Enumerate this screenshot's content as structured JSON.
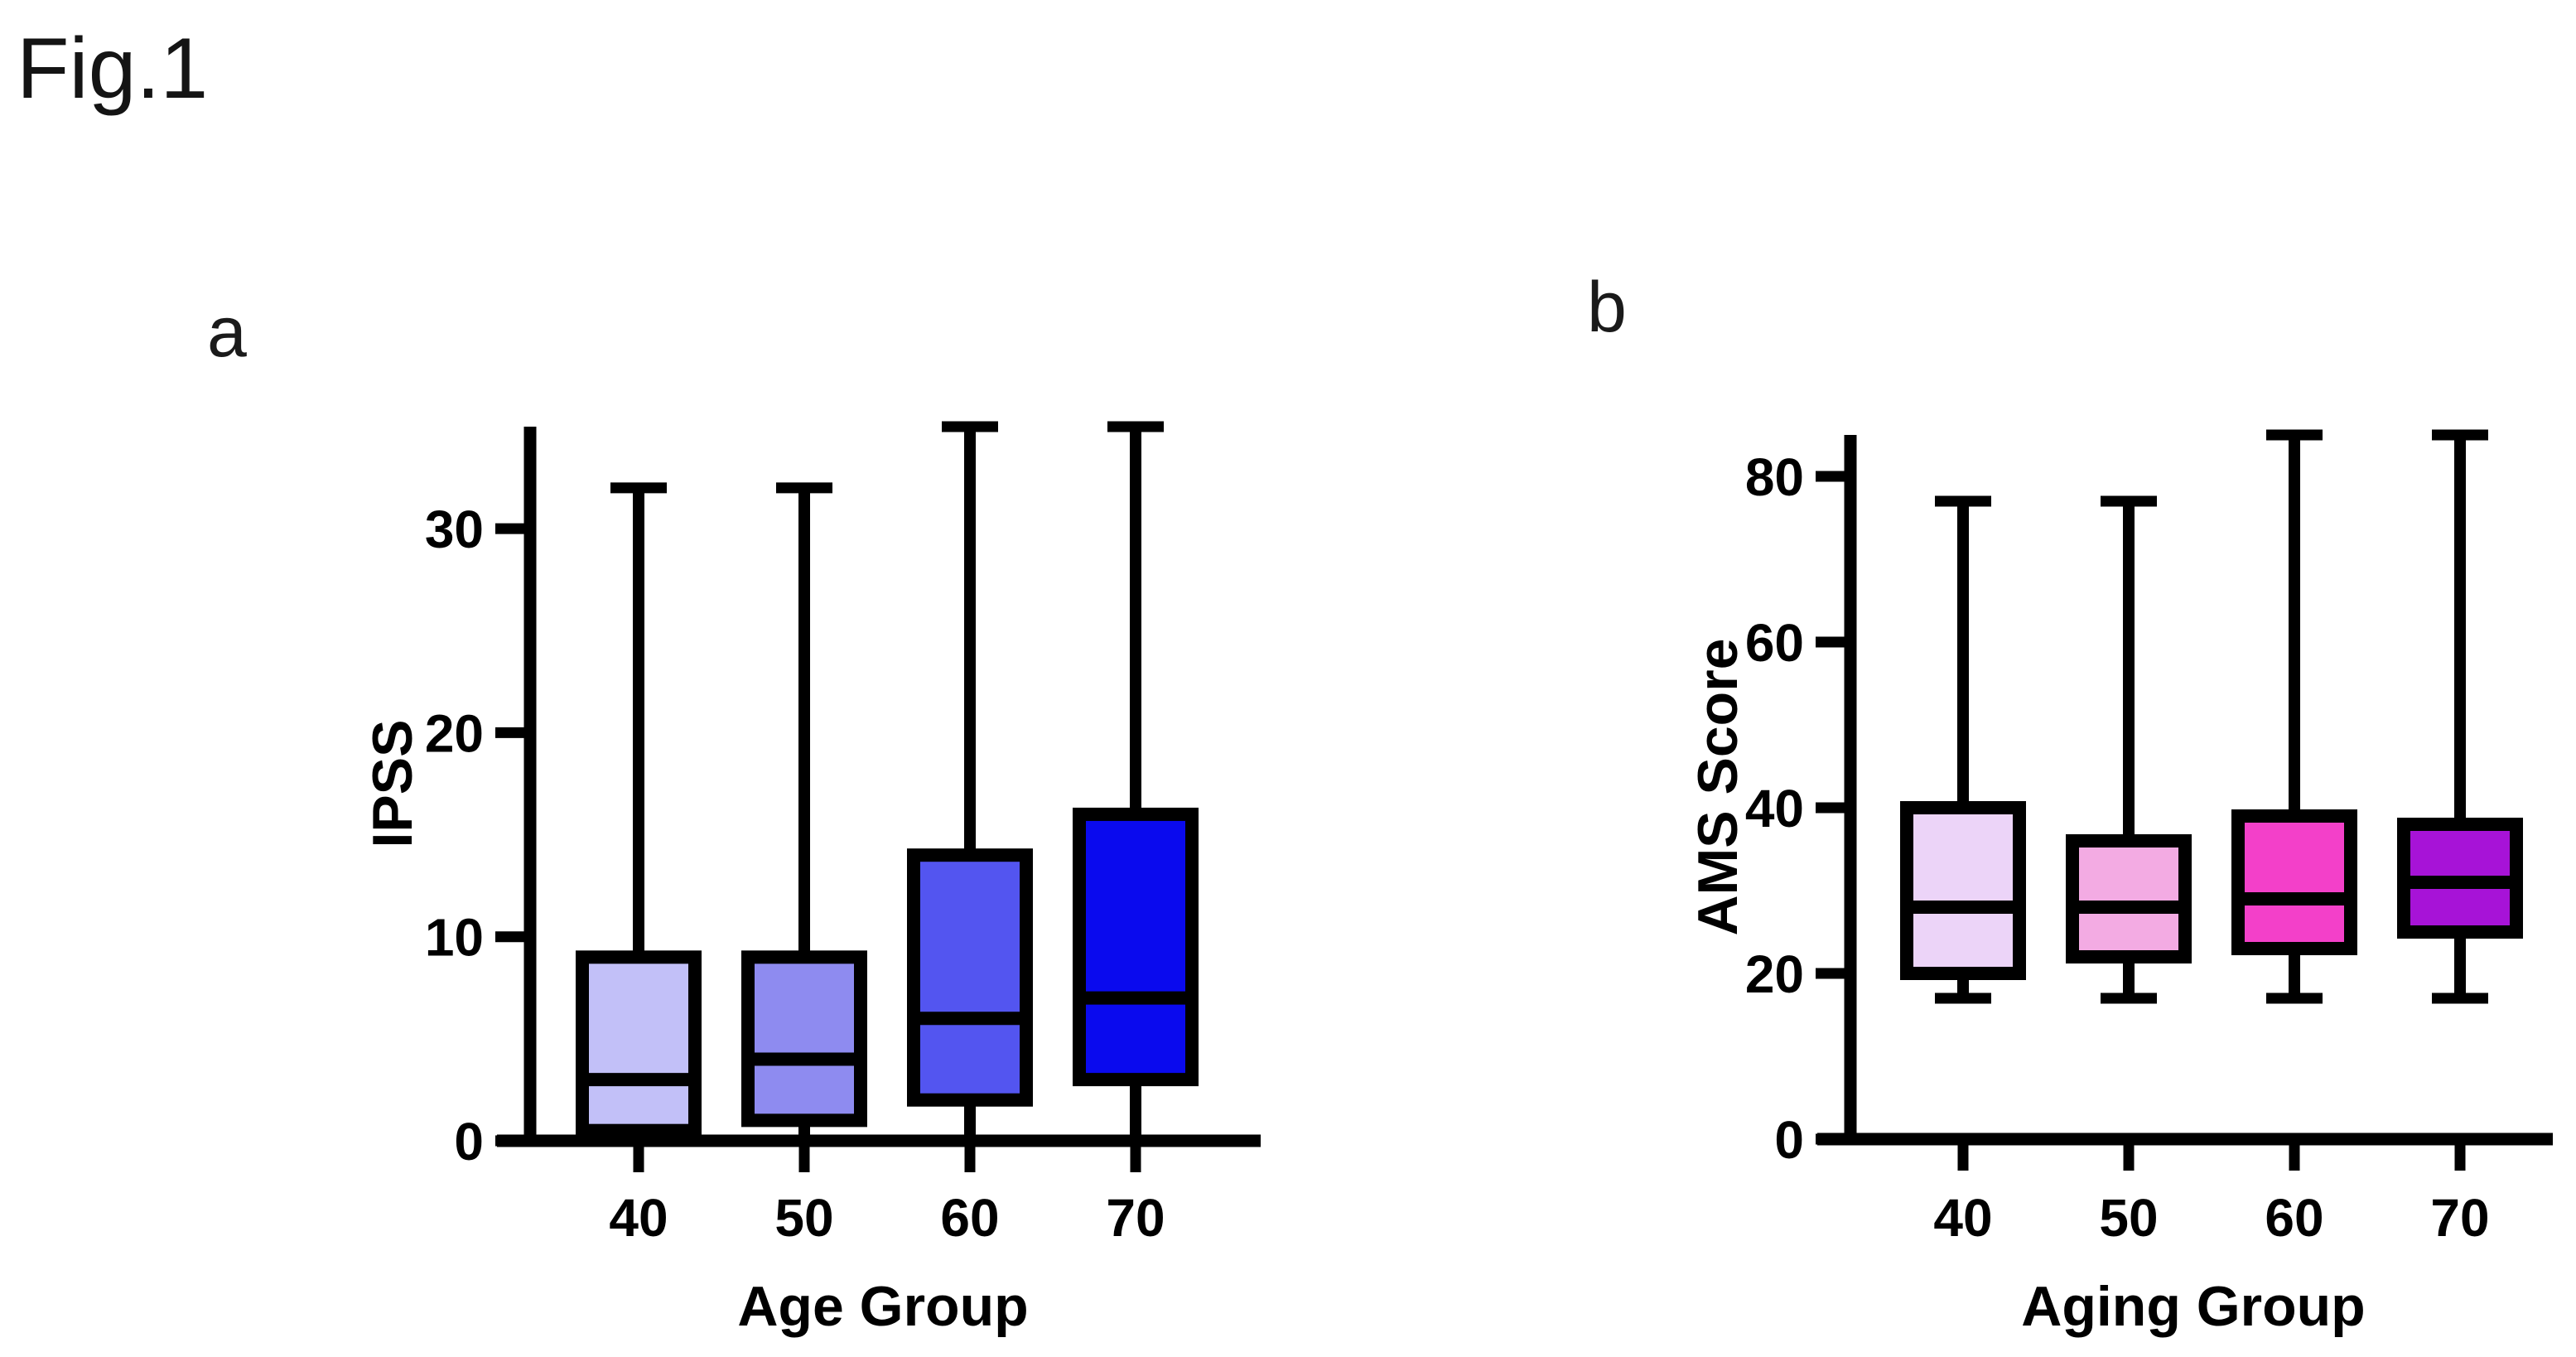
{
  "figure": {
    "label": "Fig.1"
  },
  "colors": {
    "box_border": "#000000",
    "axis": "#000000",
    "text": "#000000",
    "background": "#ffffff",
    "panel_a_fills": [
      "#c2c0f8",
      "#8e8bf0",
      "#5355f0",
      "#0a0aee"
    ],
    "panel_b_fills": [
      "#ecd4f8",
      "#f3abe3",
      "#f340c9",
      "#a713d7"
    ]
  },
  "chart_data": [
    {
      "type": "box",
      "panel_label": "a",
      "title": "",
      "xlabel": "Age Group",
      "ylabel": "IPSS",
      "categories": [
        "40",
        "50",
        "60",
        "70"
      ],
      "yticks": [
        0,
        10,
        20,
        30
      ],
      "ylim": [
        0,
        35
      ],
      "grid": false,
      "legend": "none",
      "series": [
        {
          "category": "40",
          "whisker_low": 0,
          "q1": 0.5,
          "median": 3,
          "q3": 9,
          "whisker_high": 32,
          "fill": "#c2c0f8"
        },
        {
          "category": "50",
          "whisker_low": 0,
          "q1": 1,
          "median": 4,
          "q3": 9,
          "whisker_high": 32,
          "fill": "#8e8bf0"
        },
        {
          "category": "60",
          "whisker_low": 0,
          "q1": 2,
          "median": 6,
          "q3": 14,
          "whisker_high": 35,
          "fill": "#5355f0"
        },
        {
          "category": "70",
          "whisker_low": 0,
          "q1": 3,
          "median": 7,
          "q3": 16,
          "whisker_high": 35,
          "fill": "#0a0aee"
        }
      ]
    },
    {
      "type": "box",
      "panel_label": "b",
      "title": "",
      "xlabel": "Aging Group",
      "ylabel": "AMS Score",
      "categories": [
        "40",
        "50",
        "60",
        "70"
      ],
      "yticks": [
        0,
        20,
        40,
        60,
        80
      ],
      "ylim": [
        0,
        85
      ],
      "grid": false,
      "legend": "none",
      "series": [
        {
          "category": "40",
          "whisker_low": 17,
          "q1": 20,
          "median": 28,
          "q3": 40,
          "whisker_high": 77,
          "fill": "#ecd4f8"
        },
        {
          "category": "50",
          "whisker_low": 17,
          "q1": 22,
          "median": 28,
          "q3": 36,
          "whisker_high": 77,
          "fill": "#f3abe3"
        },
        {
          "category": "60",
          "whisker_low": 17,
          "q1": 23,
          "median": 29,
          "q3": 39,
          "whisker_high": 85,
          "fill": "#f340c9"
        },
        {
          "category": "70",
          "whisker_low": 17,
          "q1": 25,
          "median": 31,
          "q3": 38,
          "whisker_high": 85,
          "fill": "#a713d7"
        }
      ]
    }
  ]
}
